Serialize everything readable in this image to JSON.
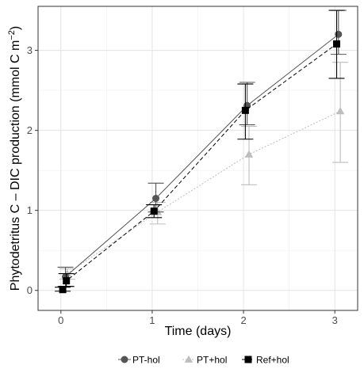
{
  "chart_data": {
    "type": "line",
    "xlabel": "Time (days)",
    "ylabel_main": "Phytodetritus C – DIC production (mmol C m",
    "ylabel_sup": "−2",
    "ylabel_close": ")",
    "xlim": [
      -0.25,
      3.25
    ],
    "ylim": [
      -0.25,
      3.55
    ],
    "x_ticks": [
      0,
      1,
      2,
      3
    ],
    "y_ticks": [
      0,
      1,
      2,
      3
    ],
    "x_tick_labels": [
      "0",
      "1",
      "2",
      "3"
    ],
    "y_tick_labels": [
      "0",
      "1",
      "2",
      "3"
    ],
    "grid": true,
    "legend_position": "bottom",
    "series": [
      {
        "name": "PT-hol",
        "color": "#555555",
        "marker": "circle",
        "line_style": "solid",
        "points": [
          {
            "x": 0.05,
            "y": 0.17,
            "err_low": 0.05,
            "err_high": 0.29
          },
          {
            "x": 1.04,
            "y": 1.15,
            "err_low": 0.98,
            "err_high": 1.34
          },
          {
            "x": 2.04,
            "y": 2.31,
            "err_low": 2.07,
            "err_high": 2.6
          },
          {
            "x": 3.04,
            "y": 3.2,
            "err_low": 2.95,
            "err_high": 3.5
          }
        ]
      },
      {
        "name": "PT+hol",
        "color": "#bdbdbd",
        "marker": "triangle",
        "line_style": "dotted",
        "points": [
          {
            "x": 0.07,
            "y": 0.21,
            "err_low": 0.14,
            "err_high": 0.27
          },
          {
            "x": 1.06,
            "y": 0.98,
            "err_low": 0.83,
            "err_high": 1.1
          },
          {
            "x": 2.06,
            "y": 1.7,
            "err_low": 1.32,
            "err_high": 2.05
          },
          {
            "x": 3.06,
            "y": 2.24,
            "err_low": 1.6,
            "err_high": 2.85
          }
        ]
      },
      {
        "name": "Ref+hol",
        "color": "#000000",
        "marker": "square",
        "line_style": "dashed",
        "points": [
          {
            "x": 0.02,
            "y": 0.01,
            "err_low": -0.01,
            "err_high": 0.04
          },
          {
            "x": 0.06,
            "y": 0.12,
            "err_low": 0.05,
            "err_high": 0.21
          },
          {
            "x": 1.02,
            "y": 0.99,
            "err_low": 0.91,
            "err_high": 1.07
          },
          {
            "x": 2.02,
            "y": 2.25,
            "err_low": 1.89,
            "err_high": 2.58
          },
          {
            "x": 3.02,
            "y": 3.08,
            "err_low": 2.65,
            "err_high": 3.5
          }
        ]
      }
    ]
  }
}
